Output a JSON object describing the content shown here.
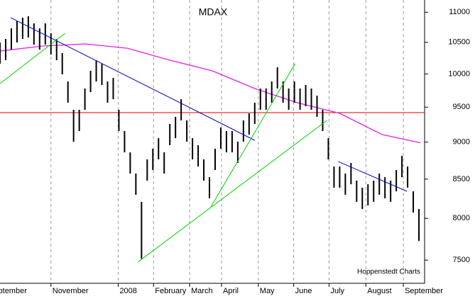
{
  "chart_data": {
    "type": "ohlc",
    "title": "MDAX",
    "source": "Hoppenstedt Charts",
    "x": [
      0,
      4,
      8,
      12,
      16,
      20,
      24,
      28,
      32,
      36,
      40,
      44,
      48,
      52,
      56,
      60,
      64,
      68,
      72,
      76,
      80,
      84,
      88,
      92,
      96,
      100,
      104,
      108,
      112,
      116,
      120,
      124,
      128,
      132,
      136,
      140,
      144,
      148,
      152,
      156,
      160,
      164,
      168,
      172,
      176,
      180,
      184,
      188,
      192,
      196,
      200,
      204,
      208,
      212,
      216,
      220,
      224,
      228,
      232,
      236,
      240,
      244,
      248,
      252,
      256,
      260,
      264,
      268,
      272,
      276,
      280,
      284,
      288,
      292,
      296
    ],
    "high": [
      10498,
      10555,
      10730,
      10848,
      10908,
      10932,
      10813,
      10730,
      10813,
      10648,
      10555,
      10327,
      9884,
      9461,
      9461,
      9777,
      10048,
      10214,
      10158,
      9884,
      9938,
      9461,
      9155,
      8859,
      8573,
      8206,
      8763,
      8908,
      9055,
      8859,
      9256,
      9358,
      9617,
      9307,
      9055,
      8957,
      8763,
      8526,
      8908,
      9205,
      9155,
      9155,
      9006,
      9307,
      9409,
      9565,
      9777,
      9777,
      9884,
      10103,
      9884,
      9777,
      9884,
      9777,
      9830,
      9777,
      9670,
      9461,
      9055,
      8667,
      8667,
      8573,
      8715,
      8480,
      8387,
      8433,
      8480,
      8573,
      8526,
      8480,
      8620,
      8811,
      8667,
      8341,
      8116
    ],
    "low": [
      10158,
      10214,
      10383,
      10498,
      10555,
      10578,
      10463,
      10383,
      10463,
      10304,
      10214,
      9993,
      9565,
      9006,
      9155,
      9461,
      9723,
      9884,
      9830,
      9565,
      9617,
      9155,
      8859,
      8573,
      8296,
      7516,
      8480,
      8620,
      8763,
      8573,
      8957,
      9055,
      9307,
      9006,
      8763,
      8667,
      8480,
      8251,
      8620,
      8908,
      8859,
      8859,
      8715,
      9006,
      9105,
      9256,
      9461,
      9461,
      9565,
      9777,
      9565,
      9461,
      9565,
      9461,
      9513,
      9461,
      9358,
      9155,
      8763,
      8387,
      8387,
      8296,
      8433,
      8206,
      8116,
      8161,
      8206,
      8296,
      8251,
      8206,
      8341,
      8526,
      8387,
      8072,
      7725
    ],
    "color": "#000000",
    "moving_average": {
      "color": "#e020e0",
      "x": [
        0,
        30,
        60,
        90,
        120,
        150,
        180,
        210,
        240,
        270,
        297
      ],
      "values": [
        10360,
        10440,
        10475,
        10405,
        10214,
        10048,
        9777,
        9565,
        9409,
        9105,
        8990
      ]
    },
    "hline": {
      "value": 9420,
      "color": "#e00000"
    },
    "trendlines": [
      {
        "color": "#0000c0",
        "x": [
          7.5,
          180
        ],
        "values": [
          10908,
          9025
        ]
      },
      {
        "color": "#00d000",
        "x": [
          0,
          46
        ],
        "values": [
          9852,
          10648
        ]
      },
      {
        "color": "#00d000",
        "x": [
          97.5,
          231
        ],
        "values": [
          7478,
          9307
        ]
      },
      {
        "color": "#00d000",
        "x": [
          149,
          208.5
        ],
        "values": [
          8143,
          10158
        ]
      },
      {
        "color": "#0000c0",
        "x": [
          239,
          287.5
        ],
        "values": [
          8734,
          8341
        ]
      }
    ],
    "xlim": [
      0,
      300
    ],
    "xticks": [
      {
        "value": -9,
        "label": "September"
      },
      {
        "value": 36,
        "label": "November"
      },
      {
        "value": 83.5,
        "label": "2008"
      },
      {
        "value": 108.5,
        "label": "February"
      },
      {
        "value": 134,
        "label": "March"
      },
      {
        "value": 156.5,
        "label": "April"
      },
      {
        "value": 182.5,
        "label": "May"
      },
      {
        "value": 207.5,
        "label": "June"
      },
      {
        "value": 232.5,
        "label": "July"
      },
      {
        "value": 258.5,
        "label": "August"
      },
      {
        "value": 285,
        "label": "September"
      }
    ],
    "ylim": [
      7236,
      11210
    ],
    "log_scale": true,
    "yticks": [
      7500,
      8000,
      8500,
      9000,
      9500,
      10000,
      10500,
      11000
    ],
    "grid": true
  }
}
